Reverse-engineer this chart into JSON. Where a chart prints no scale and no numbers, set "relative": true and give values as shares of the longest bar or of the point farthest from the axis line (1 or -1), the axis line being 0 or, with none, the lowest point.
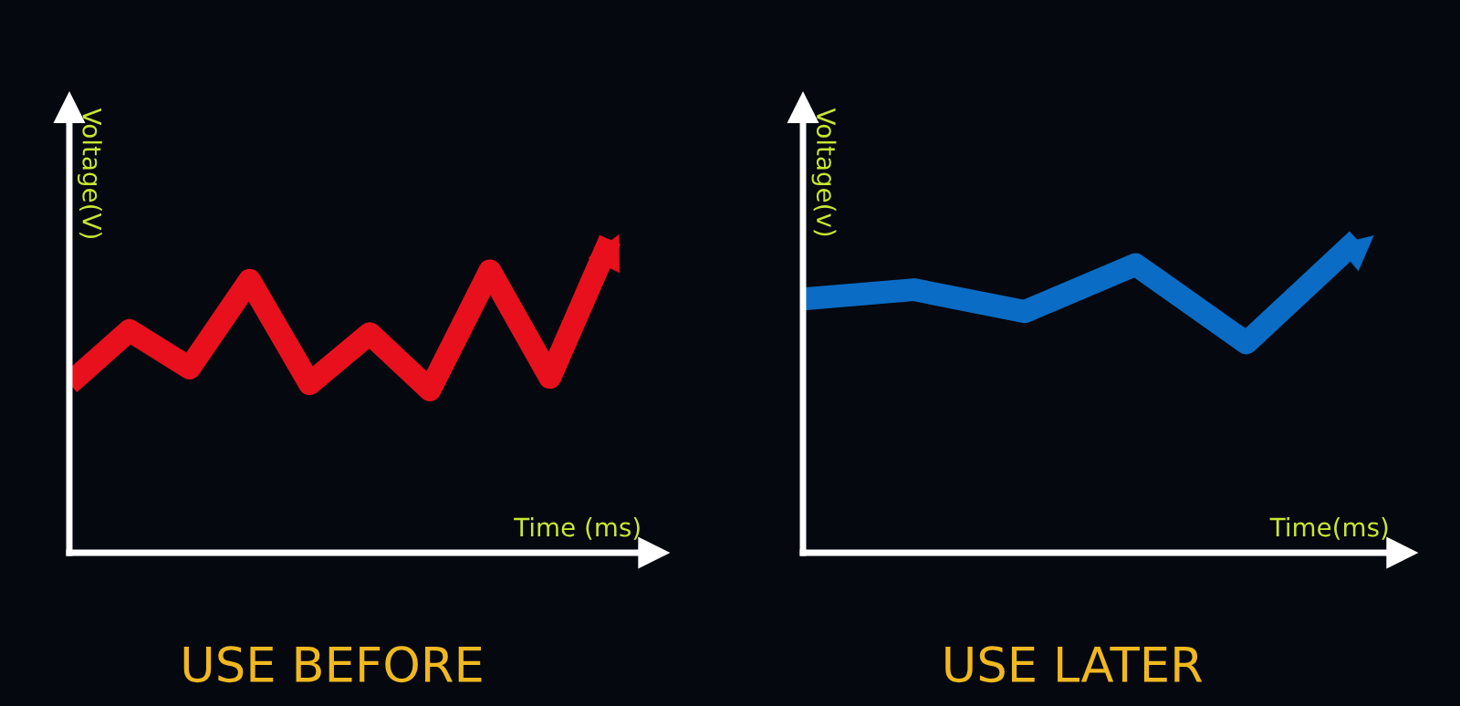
{
  "chart_data": [
    {
      "type": "line",
      "title": "USE BEFORE",
      "xlabel": "Time (ms)",
      "ylabel": "Voltage(V)",
      "relative": true,
      "categories": [
        null,
        null,
        null,
        null,
        null,
        null,
        null,
        null,
        null,
        null
      ],
      "marker": "none",
      "line_style": "solid",
      "series": [
        {
          "color": "#e8101c",
          "values": [
            0.54,
            0.71,
            0.59,
            0.87,
            0.54,
            0.7,
            0.52,
            0.9,
            0.56,
            1.0
          ]
        }
      ]
    },
    {
      "type": "line",
      "title": "USE LATER",
      "xlabel": "Time(ms)",
      "ylabel": "Voltage(v)",
      "relative": true,
      "categories": [
        null,
        null,
        null,
        null,
        null,
        null
      ],
      "marker": "none",
      "line_style": "solid",
      "series": [
        {
          "color": "#0a6cc4",
          "values": [
            0.81,
            0.84,
            0.77,
            0.92,
            0.67,
            1.0
          ]
        }
      ]
    }
  ]
}
